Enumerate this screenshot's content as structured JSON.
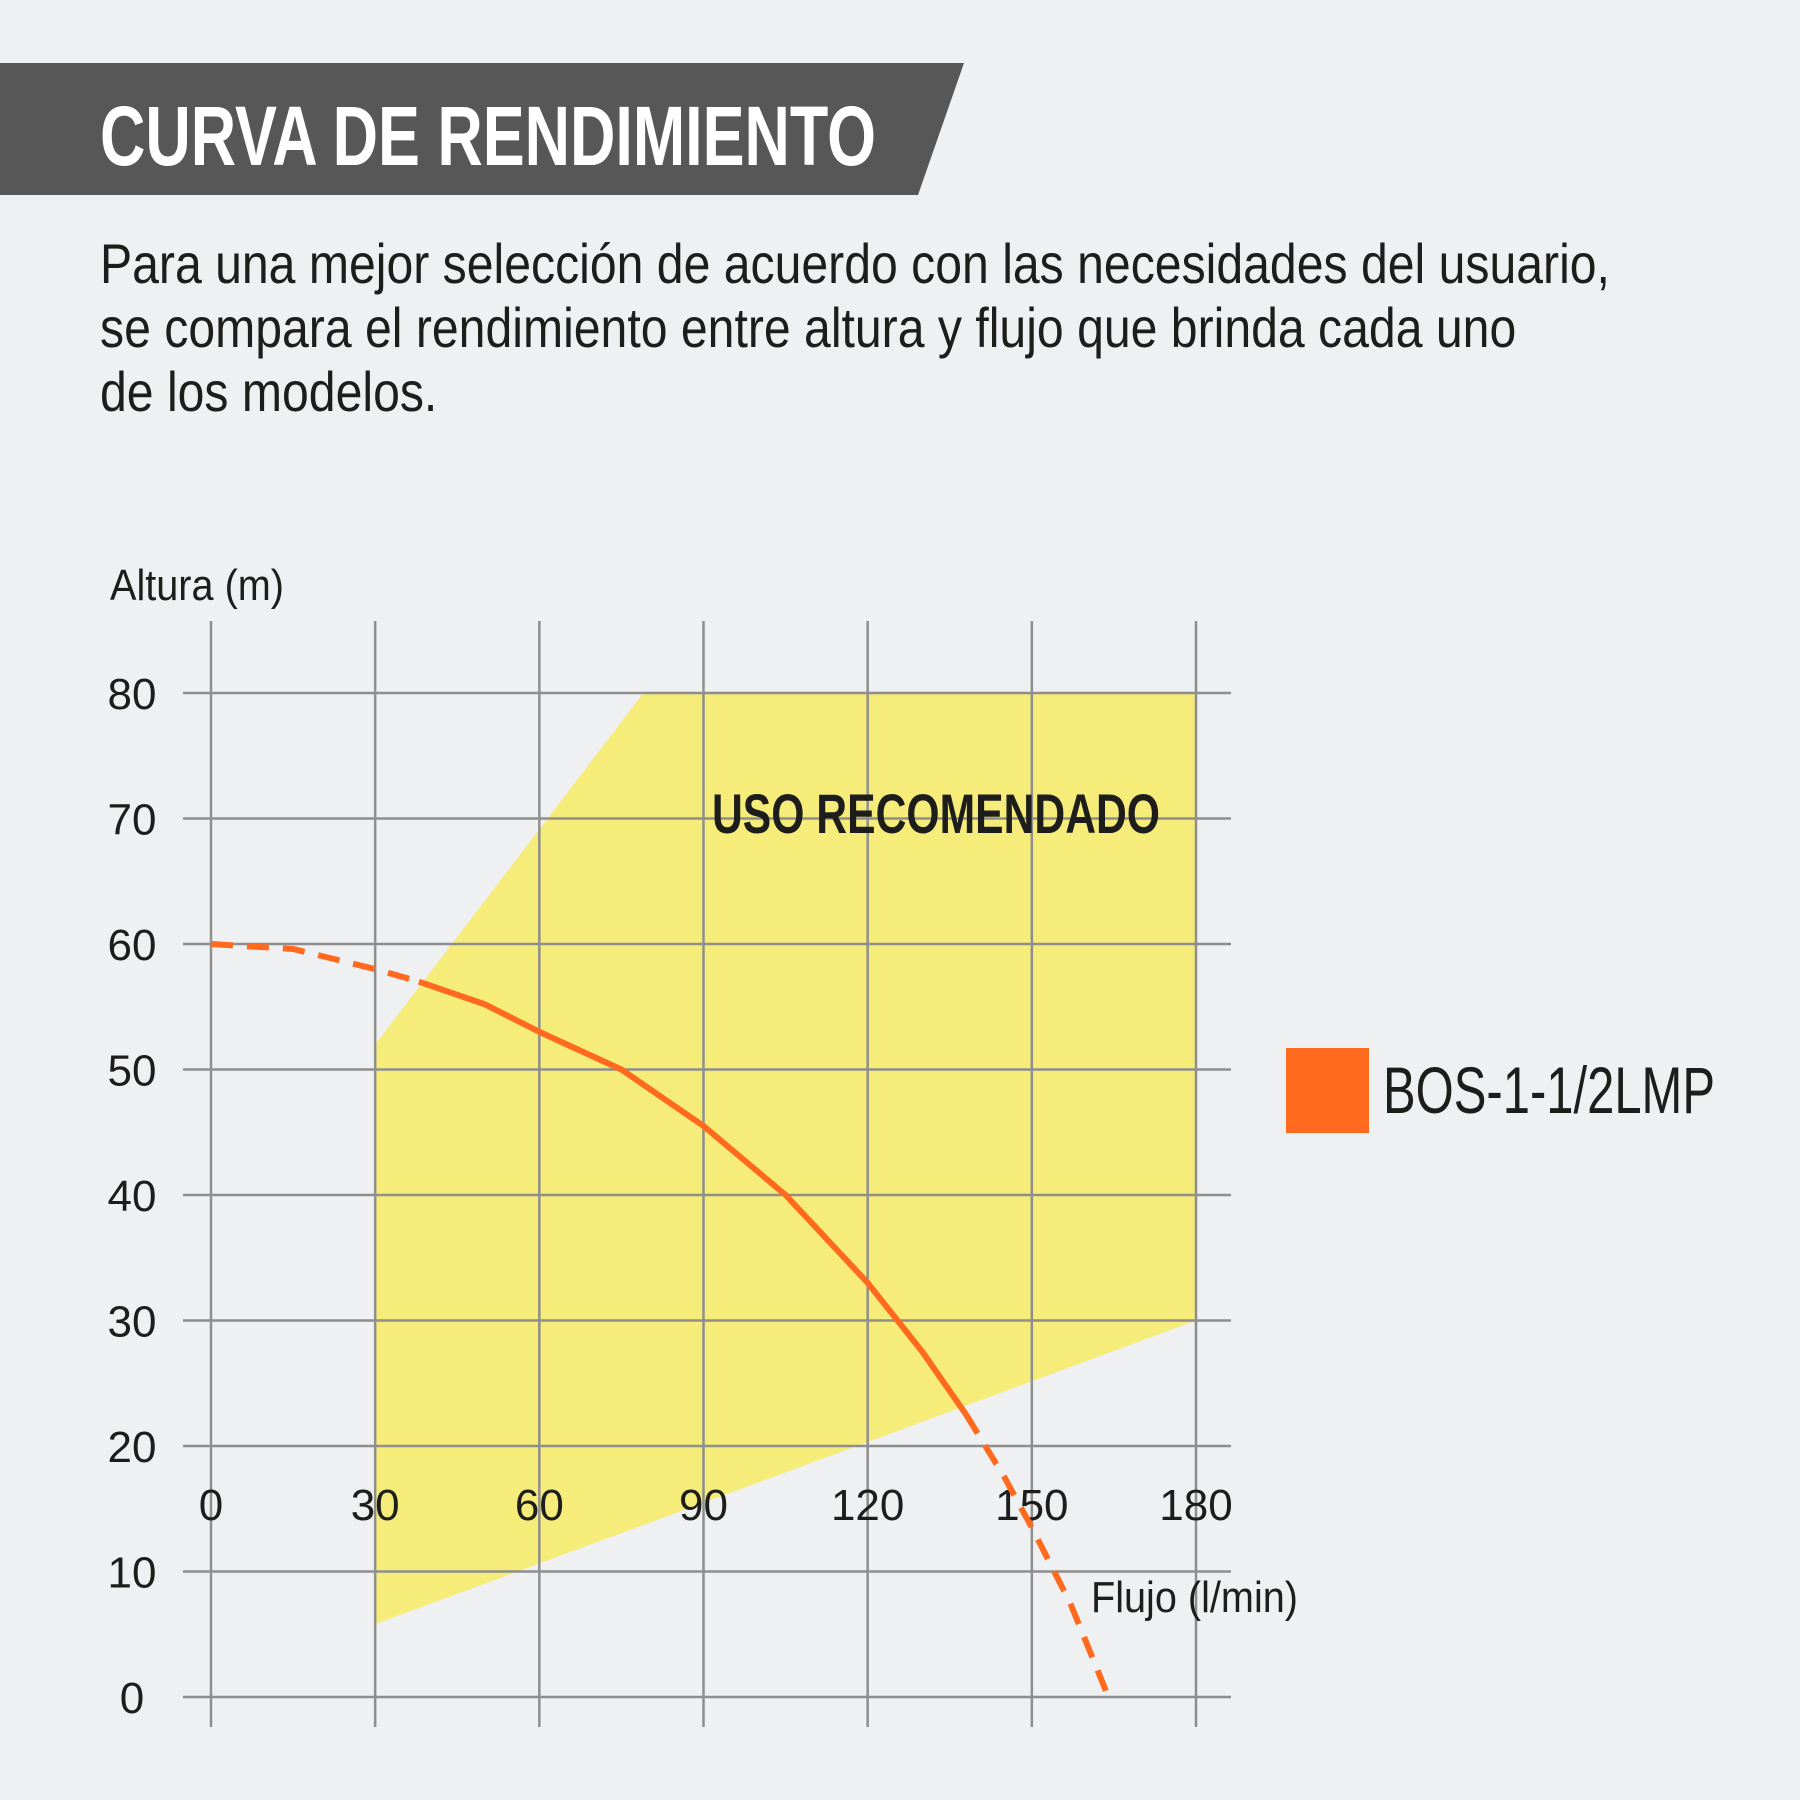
{
  "header": {
    "title": "CURVA DE RENDIMIENTO",
    "bar_color": "#575757"
  },
  "description": {
    "lines": [
      "Para una mejor selección de acuerdo con las necesidades del usuario,",
      "se compara el rendimiento entre altura y flujo que brinda cada uno",
      "de los modelos."
    ]
  },
  "chart_data": {
    "type": "line",
    "xlabel": "Flujo (l/min)",
    "ylabel": "Altura (m)",
    "xlim": [
      0,
      180
    ],
    "ylim": [
      0,
      80
    ],
    "xticks": [
      "0",
      "30",
      "60",
      "90",
      "120",
      "150",
      "180"
    ],
    "yticks": [
      "0",
      "10",
      "20",
      "30",
      "40",
      "50",
      "60",
      "70",
      "80"
    ],
    "grid": true,
    "recommended_zone": {
      "label": "USO RECOMENDADO",
      "color": "#f6ec7a",
      "polygon": [
        [
          30,
          52
        ],
        [
          79,
          80
        ],
        [
          180,
          80
        ],
        [
          180,
          30
        ],
        [
          30,
          5.8
        ]
      ]
    },
    "series": [
      {
        "name": "BOS-1-1/2LMP",
        "color": "#ff6a1f",
        "x": [
          0,
          15,
          30,
          38,
          50,
          60,
          75,
          90,
          105,
          120,
          130,
          138,
          145,
          150,
          157,
          164
        ],
        "y": [
          60,
          59.6,
          58,
          57,
          55.2,
          53,
          50,
          45.5,
          40,
          33,
          27.5,
          22.5,
          17.5,
          13.5,
          7.5,
          0
        ],
        "solid_range": [
          38,
          138
        ]
      }
    ],
    "legend": {
      "placement": "right"
    }
  }
}
